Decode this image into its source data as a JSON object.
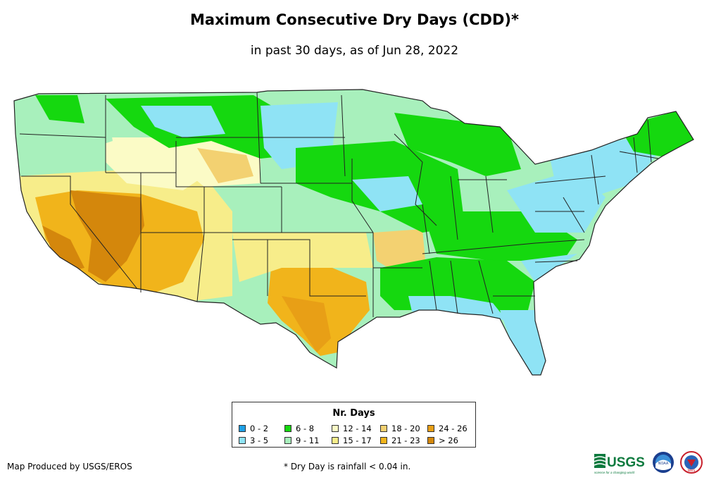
{
  "title": "Maximum Consecutive Dry Days (CDD)*",
  "subtitle": "in past 30 days, as of Jun 28, 2022",
  "legend": {
    "title": "Nr. Days",
    "items": [
      {
        "label": "0 - 2",
        "color": "#1ea0e6"
      },
      {
        "label": "3 - 5",
        "color": "#8fe3f5"
      },
      {
        "label": "6 - 8",
        "color": "#15d80f"
      },
      {
        "label": "9 - 11",
        "color": "#a8f0bc"
      },
      {
        "label": "12 - 14",
        "color": "#fbfbc6"
      },
      {
        "label": "15 - 17",
        "color": "#f7ed8a"
      },
      {
        "label": "18 - 20",
        "color": "#f3d171"
      },
      {
        "label": "21 - 23",
        "color": "#f1b41b"
      },
      {
        "label": "24 - 26",
        "color": "#e89f16"
      },
      {
        "label": "> 26",
        "color": "#d4870c"
      }
    ]
  },
  "credit": "Map Produced by USGS/EROS",
  "footnote": "* Dry Day is rainfall < 0.04 in.",
  "logos": {
    "usgs": "USGS",
    "usgs_tagline": "science for a changing world",
    "noaa": "NOAA",
    "nws": "NWS"
  }
}
